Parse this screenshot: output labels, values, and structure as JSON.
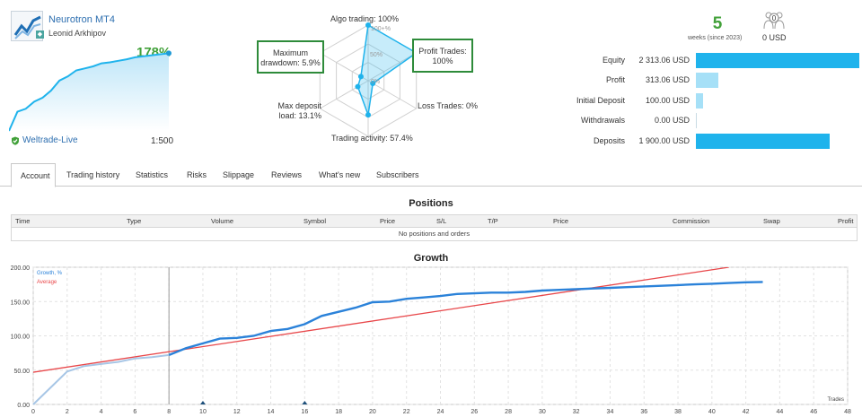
{
  "signal": {
    "name": "Neurotron MT4",
    "author": "Leonid Arkhipov",
    "growth": "178%",
    "broker": "Weltrade-Live",
    "leverage": "1:500",
    "mini_growth": [
      0,
      38,
      44,
      58,
      66,
      80,
      100,
      108,
      120,
      124,
      128,
      134,
      136,
      139,
      142,
      146,
      148,
      150,
      152,
      154
    ]
  },
  "radar": {
    "algo": "Algo trading: 100%",
    "tick100": "100+%",
    "tick50": "50%",
    "tick0": "0%",
    "profit_line1": "Profit Trades:",
    "profit_line2": "100%",
    "loss": "Loss Trades: 0%",
    "activity": "Trading activity: 57.4%",
    "maxdep_line1": "Max deposit",
    "maxdep_line2": "load: 13.1%",
    "dd_line1": "Maximum",
    "dd_line2": "drawdown: 5.9%",
    "values": {
      "algo": 100,
      "profit": 100,
      "loss": 0,
      "activity": 57.4,
      "maxdep": 13.1,
      "drawdown": 5.9
    },
    "accent": "#1fb3ec"
  },
  "summary": {
    "weeks": "5",
    "weeks_caption": "weeks (since 2023)",
    "subscribers_badge": "0",
    "subscribers_value": "0 USD"
  },
  "stats": [
    {
      "label": "Equity",
      "value": "2 313.06 USD",
      "fraction": 1.0,
      "tone": "dark"
    },
    {
      "label": "Profit",
      "value": "313.06 USD",
      "fraction": 0.135,
      "tone": "light"
    },
    {
      "label": "Initial Deposit",
      "value": "100.00 USD",
      "fraction": 0.043,
      "tone": "light"
    },
    {
      "label": "Withdrawals",
      "value": "0.00 USD",
      "fraction": 0.0,
      "tone": "light"
    },
    {
      "label": "Deposits",
      "value": "1 900.00 USD",
      "fraction": 0.821,
      "tone": "dark"
    }
  ],
  "tabs": [
    {
      "label": "Account",
      "active": true
    },
    {
      "label": "Trading history",
      "active": false
    },
    {
      "label": "Statistics",
      "active": false
    },
    {
      "label": "Risks",
      "active": false
    },
    {
      "label": "Slippage",
      "active": false
    },
    {
      "label": "Reviews",
      "active": false
    },
    {
      "label": "What's new",
      "active": false
    },
    {
      "label": "Subscribers",
      "active": false
    }
  ],
  "positions": {
    "title": "Positions",
    "columns": [
      "Time",
      "Type",
      "Volume",
      "Symbol",
      "Price",
      "S/L",
      "T/P",
      "Price",
      "Commission",
      "Swap",
      "Profit"
    ],
    "empty": "No positions and orders"
  },
  "growth_title": "Growth",
  "chart_data": {
    "type": "line",
    "xlabel": "Trades",
    "ylabel": "",
    "xlim": [
      0,
      48
    ],
    "ylim": [
      0,
      200
    ],
    "x_ticks": [
      0,
      2,
      4,
      6,
      8,
      10,
      12,
      14,
      16,
      18,
      20,
      22,
      24,
      26,
      28,
      30,
      32,
      34,
      36,
      38,
      40,
      42,
      44,
      46,
      48
    ],
    "y_ticks": [
      "0.00",
      "50.00",
      "100.00",
      "150.00",
      "200.00"
    ],
    "legend_position": "top-left",
    "grid": true,
    "series": [
      {
        "name": "Growth, %",
        "color": "#2b82d9",
        "x": [
          0,
          2,
          3,
          4,
          5,
          6,
          7,
          8,
          9,
          10,
          11,
          12,
          13,
          14,
          15,
          16,
          17,
          18,
          19,
          20,
          21,
          22,
          23,
          24,
          25,
          26,
          27,
          28,
          29,
          30,
          31,
          32,
          33,
          34,
          35,
          36,
          37,
          38,
          39,
          40,
          41,
          42,
          43
        ],
        "values": [
          0,
          48,
          56,
          59,
          62,
          67,
          69,
          72,
          82,
          89,
          96,
          97,
          100,
          107,
          110,
          117,
          129,
          135,
          141,
          149,
          150,
          154,
          156,
          158,
          161,
          162,
          163,
          163,
          164,
          166,
          167,
          168,
          169,
          170,
          171,
          172,
          173,
          174,
          175,
          176,
          177,
          178,
          178.5
        ]
      },
      {
        "name": "Average",
        "color": "#e8474a",
        "x": [
          0,
          41
        ],
        "values": [
          47,
          200
        ]
      }
    ],
    "marker_x": 8,
    "markers_on_axis": [
      10,
      16
    ]
  }
}
